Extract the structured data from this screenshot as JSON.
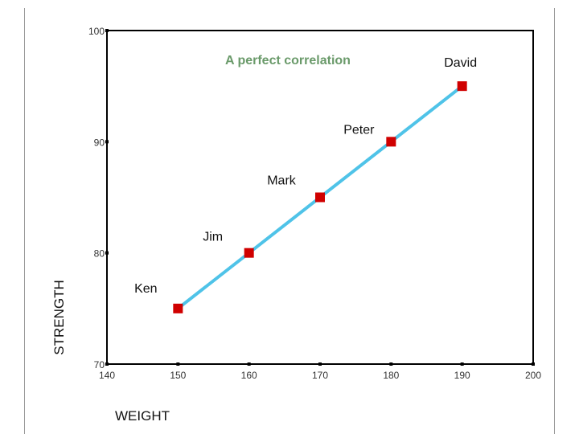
{
  "chart_data": {
    "type": "scatter",
    "title": "",
    "annotation": "A perfect correlation",
    "xlabel": "WEIGHT",
    "ylabel": "STRENGTH",
    "xlim": [
      140,
      200
    ],
    "ylim": [
      70,
      100
    ],
    "x_ticks": [
      "140",
      "150",
      "160",
      "170",
      "180",
      "190",
      "200"
    ],
    "y_ticks": [
      "70",
      "80",
      "90",
      "100"
    ],
    "points": [
      {
        "label": "Ken",
        "x": 150,
        "y": 75
      },
      {
        "label": "Jim",
        "x": 160,
        "y": 80
      },
      {
        "label": "Mark",
        "x": 170,
        "y": 85
      },
      {
        "label": "Peter",
        "x": 180,
        "y": 90
      },
      {
        "label": "David",
        "x": 190,
        "y": 95
      }
    ],
    "fit_line": {
      "x": [
        150,
        190
      ],
      "y": [
        75,
        95
      ]
    },
    "colors": {
      "marker": "#d00000",
      "line": "#4fc3e8",
      "annotation": "#6a9a6a"
    },
    "grid": false
  }
}
